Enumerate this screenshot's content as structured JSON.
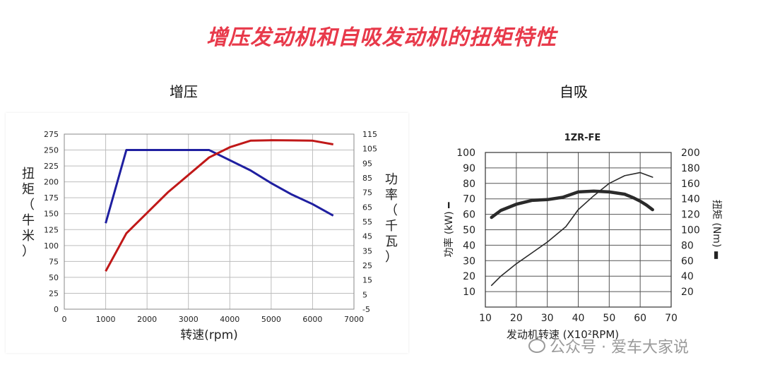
{
  "title": "增压发动机和自吸发动机的扭矩特性",
  "left_label": "增压",
  "right_label": "自吸",
  "watermark": "公众号 · 爱车大家说",
  "colors": {
    "title": "#e8394a",
    "torque_left": "#1f1fa0",
    "power_left": "#c01818",
    "right_lines": "#2a2a2a"
  },
  "chart_data": [
    {
      "type": "line",
      "title": "",
      "xlabel": "转速(rpm)",
      "ylabel": "扭矩（牛米）",
      "y2label": "功率（千瓦）",
      "xlim": [
        0,
        7000
      ],
      "ylim": [
        0,
        275
      ],
      "y2lim": [
        -5,
        115
      ],
      "xticks": [
        "0",
        "1000",
        "2000",
        "3000",
        "4000",
        "5000",
        "6000",
        "7000"
      ],
      "yticks": [
        "0",
        "25",
        "50",
        "75",
        "100",
        "125",
        "150",
        "175",
        "200",
        "225",
        "250",
        "275"
      ],
      "y2ticks": [
        "-5",
        "5",
        "15",
        "25",
        "35",
        "45",
        "55",
        "65",
        "75",
        "85",
        "95",
        "105",
        "115"
      ],
      "grid": true,
      "series": [
        {
          "axis": "left",
          "color": "#1f1fa0",
          "x": [
            1000,
            1500,
            3500,
            4500,
            5000,
            5500,
            6000,
            6500
          ],
          "y": [
            135,
            250,
            250,
            218,
            198,
            180,
            165,
            147
          ]
        },
        {
          "axis": "right",
          "color": "#c01818",
          "x": [
            1000,
            1500,
            2500,
            3500,
            4000,
            4500,
            5000,
            5500,
            6000,
            6500
          ],
          "y": [
            21,
            47,
            75,
            99,
            106,
            110.5,
            110.8,
            110.7,
            110.5,
            108
          ]
        }
      ]
    },
    {
      "type": "line",
      "title": "1ZR-FE",
      "xlabel": "发动机转速 (X10²RPM)",
      "ylabel": "功率 (kW) ━",
      "y2label": "扭矩 (Nm) ▬",
      "xlim": [
        10,
        70
      ],
      "ylim": [
        0,
        100
      ],
      "y2lim": [
        0,
        200
      ],
      "xticks": [
        "10",
        "20",
        "30",
        "40",
        "50",
        "60",
        "70"
      ],
      "yticks": [
        "10",
        "20",
        "30",
        "40",
        "50",
        "60",
        "70",
        "80",
        "90",
        "100"
      ],
      "y2ticks": [
        "20",
        "40",
        "60",
        "80",
        "100",
        "120",
        "140",
        "160",
        "180",
        "200"
      ],
      "grid": true,
      "series": [
        {
          "axis": "left",
          "thin": true,
          "x": [
            12,
            15,
            20,
            25,
            30,
            36,
            40,
            45,
            50,
            55,
            60,
            64
          ],
          "y": [
            14,
            20,
            28,
            35,
            42,
            52,
            63,
            72,
            80,
            85,
            87,
            84
          ]
        },
        {
          "axis": "right",
          "thin": false,
          "x": [
            12,
            15,
            20,
            25,
            30,
            35,
            40,
            45,
            50,
            55,
            58,
            60,
            62,
            64
          ],
          "y": [
            116,
            125,
            133,
            138,
            139,
            142,
            149,
            150,
            149,
            146,
            141,
            137,
            132,
            126
          ]
        }
      ]
    }
  ]
}
